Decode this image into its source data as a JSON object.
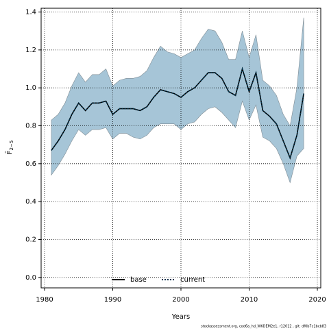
{
  "chart_data": {
    "type": "line",
    "xlabel": "Years",
    "ylabel": {
      "main": "F̄",
      "sub": "2−5"
    },
    "footnote": "stockassessment.org, cod6a_hd_WKDEM2e1, r12012 , git: df0b7c1bcb83",
    "x": [
      1981,
      1982,
      1983,
      1984,
      1985,
      1986,
      1987,
      1988,
      1989,
      1990,
      1991,
      1992,
      1993,
      1994,
      1995,
      1996,
      1997,
      1998,
      1999,
      2000,
      2001,
      2002,
      2003,
      2004,
      2005,
      2006,
      2007,
      2008,
      2009,
      2010,
      2011,
      2012,
      2013,
      2014,
      2015,
      2016,
      2017,
      2018
    ],
    "series": [
      {
        "name": "base",
        "color": "#000000",
        "dash": false,
        "values": [
          0.67,
          0.72,
          0.78,
          0.86,
          0.92,
          0.88,
          0.92,
          0.92,
          0.93,
          0.86,
          0.89,
          0.89,
          0.89,
          0.88,
          0.9,
          0.95,
          0.99,
          0.98,
          0.97,
          0.95,
          0.98,
          1.0,
          1.04,
          1.08,
          1.08,
          1.05,
          0.98,
          0.96,
          1.1,
          0.98,
          1.08,
          0.88,
          0.85,
          0.81,
          0.72,
          0.63,
          0.75,
          0.97
        ]
      },
      {
        "name": "current",
        "color": "#00334d",
        "dash": true,
        "values": [
          0.67,
          0.72,
          0.78,
          0.86,
          0.92,
          0.88,
          0.92,
          0.92,
          0.93,
          0.86,
          0.89,
          0.89,
          0.89,
          0.88,
          0.9,
          0.95,
          0.99,
          0.98,
          0.97,
          0.95,
          0.98,
          1.0,
          1.04,
          1.08,
          1.08,
          1.05,
          0.98,
          0.96,
          1.1,
          0.98,
          1.08,
          0.88,
          0.85,
          0.81,
          0.72,
          0.63,
          0.75,
          0.97
        ],
        "upper": [
          0.83,
          0.86,
          0.92,
          1.01,
          1.08,
          1.03,
          1.07,
          1.07,
          1.1,
          1.01,
          1.04,
          1.05,
          1.05,
          1.06,
          1.09,
          1.16,
          1.22,
          1.19,
          1.18,
          1.16,
          1.18,
          1.2,
          1.26,
          1.31,
          1.3,
          1.24,
          1.15,
          1.15,
          1.3,
          1.16,
          1.28,
          1.04,
          1.01,
          0.96,
          0.86,
          0.8,
          1.0,
          1.37
        ],
        "lower": [
          0.54,
          0.59,
          0.65,
          0.72,
          0.78,
          0.75,
          0.78,
          0.78,
          0.79,
          0.73,
          0.76,
          0.76,
          0.74,
          0.73,
          0.75,
          0.79,
          0.81,
          0.81,
          0.81,
          0.78,
          0.81,
          0.82,
          0.86,
          0.89,
          0.9,
          0.87,
          0.83,
          0.79,
          0.93,
          0.83,
          0.91,
          0.74,
          0.72,
          0.68,
          0.6,
          0.5,
          0.64,
          0.68
        ],
        "band_color": "#a6c5d7"
      }
    ],
    "xlim": [
      1979.5,
      2020.5
    ],
    "ylim": [
      -0.055,
      1.42
    ],
    "xticks": [
      1980,
      1990,
      2000,
      2010,
      2020
    ],
    "yticks": [
      {
        "value": 0,
        "label": "0.0"
      },
      {
        "value": 0.2,
        "label": "0.2"
      },
      {
        "value": 0.4,
        "label": "0.4"
      },
      {
        "value": 0.6,
        "label": "0.6"
      },
      {
        "value": 0.8,
        "label": "0.8"
      },
      {
        "value": 1,
        "label": "1.0"
      },
      {
        "value": 1.2,
        "label": "1.2"
      },
      {
        "value": 1.4,
        "label": "1.4"
      }
    ],
    "grid": true,
    "legend": "bottom"
  }
}
